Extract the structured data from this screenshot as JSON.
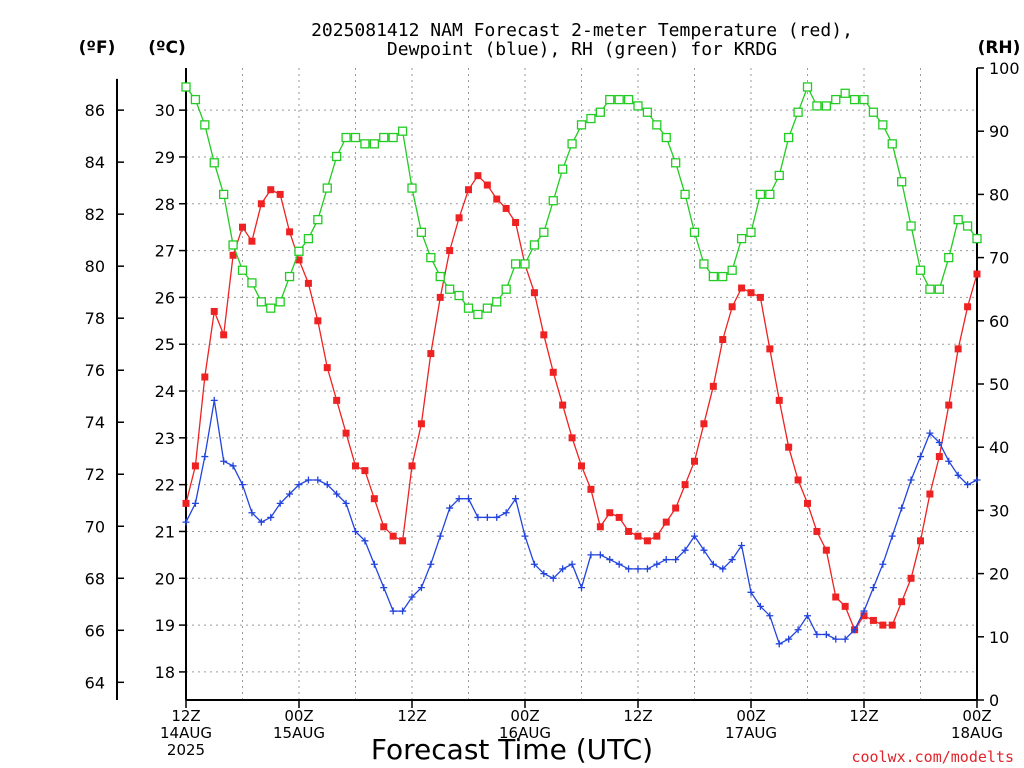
{
  "chart_data": {
    "type": "line",
    "title": "2025081412 NAM Forecast 2-meter Temperature (red),",
    "subtitle": "Dewpoint (blue), RH (green) for KRDG",
    "xlabel": "Forecast Time (UTC)",
    "left_outer_axis_label": "(ºF)",
    "left_inner_axis_label": "(ºC)",
    "right_axis_label": "(RH)",
    "credit": "coolwx.com/modelts",
    "x_unit": "forecast hour",
    "xlim": [
      0,
      84
    ],
    "x_tick_labels": [
      {
        "x": 0,
        "lines": [
          "12Z",
          "14AUG",
          "2025"
        ]
      },
      {
        "x": 12,
        "lines": [
          "00Z",
          "15AUG"
        ]
      },
      {
        "x": 24,
        "lines": [
          "12Z"
        ]
      },
      {
        "x": 36,
        "lines": [
          "00Z",
          "16AUG"
        ]
      },
      {
        "x": 48,
        "lines": [
          "12Z"
        ]
      },
      {
        "x": 60,
        "lines": [
          "00Z",
          "17AUG"
        ]
      },
      {
        "x": 72,
        "lines": [
          "12Z"
        ]
      },
      {
        "x": 84,
        "lines": [
          "00Z",
          "18AUG"
        ]
      }
    ],
    "celsius_ticks": [
      18,
      19,
      20,
      21,
      22,
      23,
      24,
      25,
      26,
      27,
      28,
      29,
      30
    ],
    "fahrenheit_ticks": [
      64,
      66,
      68,
      70,
      72,
      74,
      76,
      78,
      80,
      82,
      84,
      86
    ],
    "rh_ticks": [
      0,
      10,
      20,
      30,
      40,
      50,
      60,
      70,
      80,
      90,
      100
    ],
    "ylim_celsius": [
      17.4,
      30.9
    ],
    "ylim_rh": [
      0,
      100
    ],
    "grid": true,
    "series": [
      {
        "name": "Temperature",
        "unit": "ºC",
        "color": "#ee2222",
        "marker": "filled-square",
        "x": [
          0,
          1,
          2,
          3,
          4,
          5,
          6,
          7,
          8,
          9,
          10,
          11,
          12,
          13,
          14,
          15,
          16,
          17,
          18,
          19,
          20,
          21,
          22,
          23,
          24,
          25,
          26,
          27,
          28,
          29,
          30,
          31,
          32,
          33,
          34,
          35,
          36,
          37,
          38,
          39,
          40,
          41,
          42,
          43,
          44,
          45,
          46,
          47,
          48,
          49,
          50,
          51,
          52,
          53,
          54,
          55,
          56,
          57,
          58,
          59,
          60,
          61,
          62,
          63,
          64,
          65,
          66,
          67,
          68,
          69,
          70,
          71,
          72,
          73,
          74,
          75,
          76,
          77,
          78,
          79,
          80,
          81,
          82,
          83,
          84
        ],
        "values": [
          21.6,
          22.4,
          24.3,
          25.7,
          25.2,
          26.9,
          27.5,
          27.2,
          28.0,
          28.3,
          28.2,
          27.4,
          26.8,
          26.3,
          25.5,
          24.5,
          23.8,
          23.1,
          22.4,
          22.3,
          21.7,
          21.1,
          20.9,
          20.8,
          22.4,
          23.3,
          24.8,
          26.0,
          27.0,
          27.7,
          28.3,
          28.6,
          28.4,
          28.1,
          27.9,
          27.6,
          26.7,
          26.1,
          25.2,
          24.4,
          23.7,
          23.0,
          22.4,
          21.9,
          21.1,
          21.4,
          21.3,
          21.0,
          20.9,
          20.8,
          20.9,
          21.2,
          21.5,
          22.0,
          22.5,
          23.3,
          24.1,
          25.1,
          25.8,
          26.2,
          26.1,
          26.0,
          24.9,
          23.8,
          22.8,
          22.1,
          21.6,
          21.0,
          20.6,
          19.6,
          19.4,
          18.9,
          19.2,
          19.1,
          19.0,
          19.0,
          19.5,
          20.0,
          20.8,
          21.8,
          22.6,
          23.7,
          24.9,
          25.8,
          26.5
        ]
      },
      {
        "name": "Dewpoint",
        "unit": "ºC",
        "color": "#2244dd",
        "marker": "plus",
        "x": [
          0,
          1,
          2,
          3,
          4,
          5,
          6,
          7,
          8,
          9,
          10,
          11,
          12,
          13,
          14,
          15,
          16,
          17,
          18,
          19,
          20,
          21,
          22,
          23,
          24,
          25,
          26,
          27,
          28,
          29,
          30,
          31,
          32,
          33,
          34,
          35,
          36,
          37,
          38,
          39,
          40,
          41,
          42,
          43,
          44,
          45,
          46,
          47,
          48,
          49,
          50,
          51,
          52,
          53,
          54,
          55,
          56,
          57,
          58,
          59,
          60,
          61,
          62,
          63,
          64,
          65,
          66,
          67,
          68,
          69,
          70,
          71,
          72,
          73,
          74,
          75,
          76,
          77,
          78,
          79,
          80,
          81,
          82,
          83,
          84
        ],
        "values": [
          21.2,
          21.6,
          22.6,
          23.8,
          22.5,
          22.4,
          22.0,
          21.4,
          21.2,
          21.3,
          21.6,
          21.8,
          22.0,
          22.1,
          22.1,
          22.0,
          21.8,
          21.6,
          21.0,
          20.8,
          20.3,
          19.8,
          19.3,
          19.3,
          19.6,
          19.8,
          20.3,
          20.9,
          21.5,
          21.7,
          21.7,
          21.3,
          21.3,
          21.3,
          21.4,
          21.7,
          20.9,
          20.3,
          20.1,
          20.0,
          20.2,
          20.3,
          19.8,
          20.5,
          20.5,
          20.4,
          20.3,
          20.2,
          20.2,
          20.2,
          20.3,
          20.4,
          20.4,
          20.6,
          20.9,
          20.6,
          20.3,
          20.2,
          20.4,
          20.7,
          19.7,
          19.4,
          19.2,
          18.6,
          18.7,
          18.9,
          19.2,
          18.8,
          18.8,
          18.7,
          18.7,
          18.9,
          19.3,
          19.8,
          20.3,
          20.9,
          21.5,
          22.1,
          22.6,
          23.1,
          22.9,
          22.5,
          22.2,
          22.0,
          22.1
        ]
      },
      {
        "name": "RH",
        "unit": "%",
        "color": "#22cc22",
        "marker": "open-square",
        "x": [
          0,
          1,
          2,
          3,
          4,
          5,
          6,
          7,
          8,
          9,
          10,
          11,
          12,
          13,
          14,
          15,
          16,
          17,
          18,
          19,
          20,
          21,
          22,
          23,
          24,
          25,
          26,
          27,
          28,
          29,
          30,
          31,
          32,
          33,
          34,
          35,
          36,
          37,
          38,
          39,
          40,
          41,
          42,
          43,
          44,
          45,
          46,
          47,
          48,
          49,
          50,
          51,
          52,
          53,
          54,
          55,
          56,
          57,
          58,
          59,
          60,
          61,
          62,
          63,
          64,
          65,
          66,
          67,
          68,
          69,
          70,
          71,
          72,
          73,
          74,
          75,
          76,
          77,
          78,
          79,
          80,
          81,
          82,
          83,
          84
        ],
        "values": [
          97,
          95,
          91,
          85,
          80,
          72,
          68,
          66,
          63,
          62,
          63,
          67,
          71,
          73,
          76,
          81,
          86,
          89,
          89,
          88,
          88,
          89,
          89,
          90,
          81,
          74,
          70,
          67,
          65,
          64,
          62,
          61,
          62,
          63,
          65,
          69,
          69,
          72,
          74,
          79,
          84,
          88,
          91,
          92,
          93,
          95,
          95,
          95,
          94,
          93,
          91,
          89,
          85,
          80,
          74,
          69,
          67,
          67,
          68,
          73,
          74,
          80,
          80,
          83,
          89,
          93,
          97,
          94,
          94,
          95,
          96,
          95,
          95,
          93,
          91,
          88,
          82,
          75,
          68,
          65,
          65,
          70,
          76,
          75,
          73
        ]
      }
    ]
  }
}
